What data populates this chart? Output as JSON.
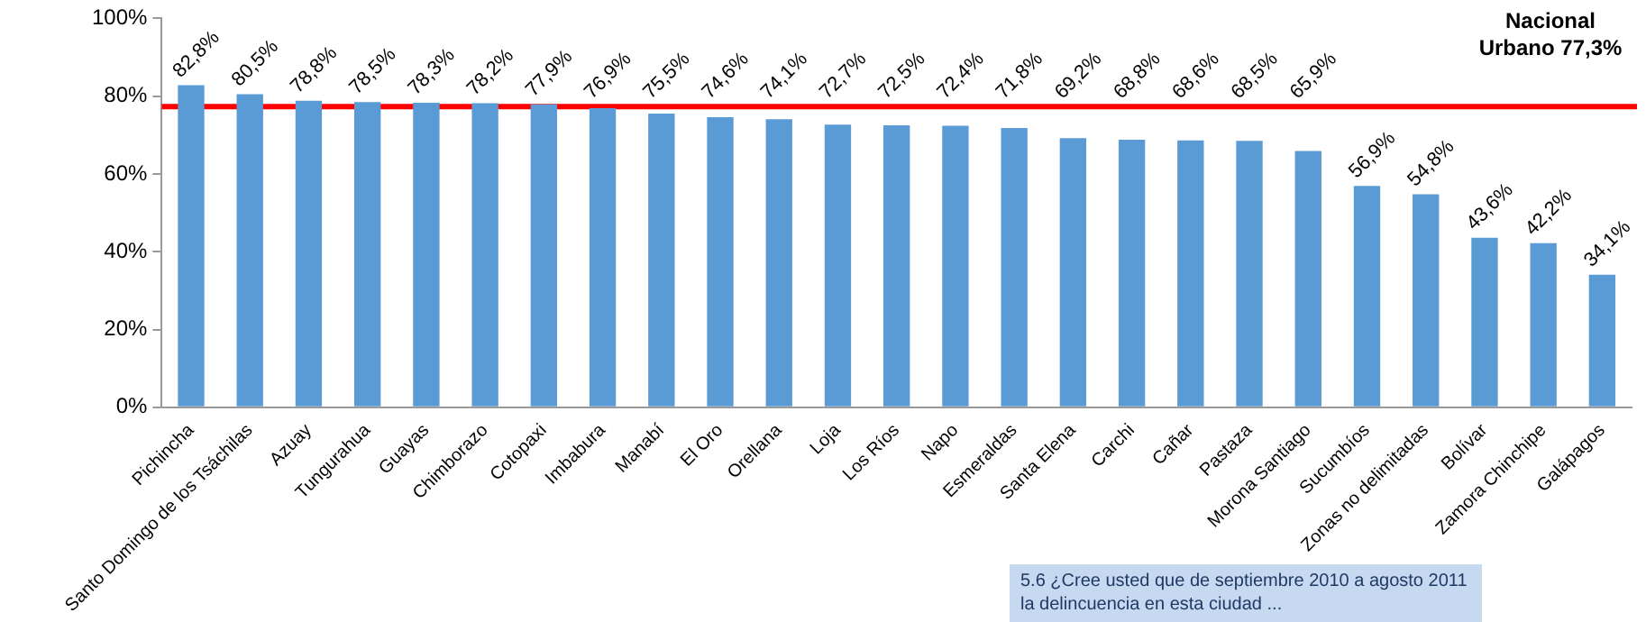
{
  "chart_data": {
    "type": "bar",
    "categories": [
      "Pichincha",
      "Santo Domingo de los Tsáchilas",
      "Azuay",
      "Tungurahua",
      "Guayas",
      "Chimborazo",
      "Cotopaxi",
      "Imbabura",
      "Manabí",
      "El Oro",
      "Orellana",
      "Loja",
      "Los Ríos",
      "Napo",
      "Esmeraldas",
      "Santa Elena",
      "Carchi",
      "Cañar",
      "Pastaza",
      "Morona Santiago",
      "Sucumbíos",
      "Zonas no delimitadas",
      "Bolívar",
      "Zamora Chinchipe",
      "Galápagos"
    ],
    "values": [
      82.8,
      80.5,
      78.8,
      78.5,
      78.3,
      78.2,
      77.9,
      76.9,
      75.5,
      74.6,
      74.1,
      72.7,
      72.5,
      72.4,
      71.8,
      69.2,
      68.8,
      68.6,
      68.5,
      65.9,
      56.9,
      54.8,
      43.6,
      42.2,
      34.1
    ],
    "value_labels": [
      "82,8%",
      "80,5%",
      "78,8%",
      "78,5%",
      "78,3%",
      "78,2%",
      "77,9%",
      "76,9%",
      "75,5%",
      "74,6%",
      "74,1%",
      "72,7%",
      "72,5%",
      "72,4%",
      "71,8%",
      "69,2%",
      "68,8%",
      "68,6%",
      "68,5%",
      "65,9%",
      "56,9%",
      "54,8%",
      "43,6%",
      "42,2%",
      "34,1%"
    ],
    "color": "#5b9bd5",
    "ylim": [
      0,
      100
    ],
    "yticks": [
      {
        "value": 0,
        "label": "0%"
      },
      {
        "value": 20,
        "label": "20%"
      },
      {
        "value": 40,
        "label": "40%"
      },
      {
        "value": 60,
        "label": "60%"
      },
      {
        "value": 80,
        "label": "80%"
      },
      {
        "value": 100,
        "label": "100%"
      }
    ],
    "grid": false,
    "legend": false,
    "ref_lines": [
      {
        "axis": "y",
        "value": 77.3,
        "label": "Nacional Urbano 77,3%",
        "color": "#ff0000"
      }
    ],
    "annotations": [
      "5.6 ¿Cree usted que de septiembre 2010 a agosto 2011 la delincuencia en esta ciudad ..."
    ]
  }
}
